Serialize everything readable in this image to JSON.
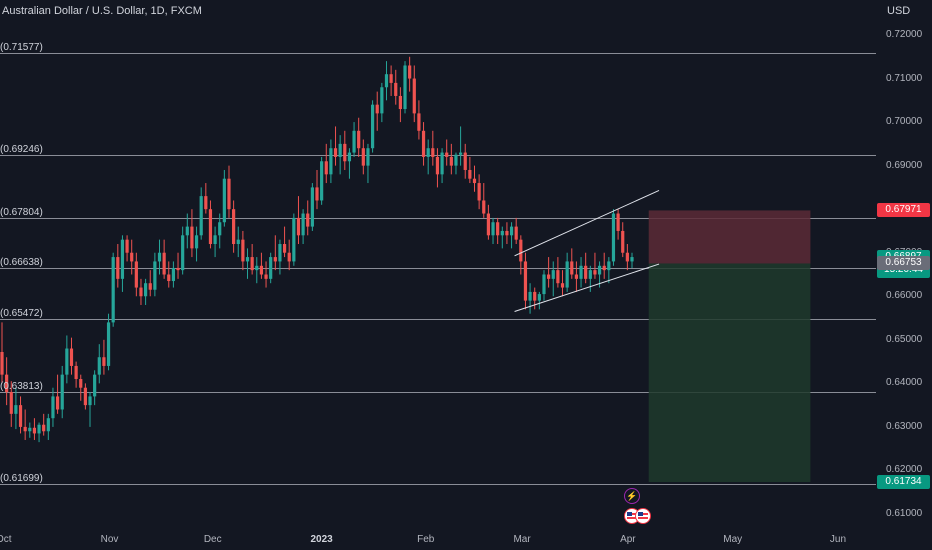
{
  "chart_data": {
    "type": "candlestick",
    "title": "Australian Dollar / U.S. Dollar, 1D, FXCM",
    "currency": "USD",
    "ylim": [
      0.6063,
      0.7236
    ],
    "y_ticks": [
      "0.72000",
      "0.71000",
      "0.70000",
      "0.69000",
      "0.68000",
      "0.67000",
      "0.66000",
      "0.65000",
      "0.64000",
      "0.63000",
      "0.62000",
      "0.61000"
    ],
    "x_ticks": [
      {
        "label": "Oct",
        "bold": false
      },
      {
        "label": "Nov",
        "bold": false
      },
      {
        "label": "Dec",
        "bold": false
      },
      {
        "label": "2023",
        "bold": true
      },
      {
        "label": "Feb",
        "bold": false
      },
      {
        "label": "Mar",
        "bold": false
      },
      {
        "label": "Apr",
        "bold": false
      },
      {
        "label": "May",
        "bold": false
      },
      {
        "label": "Jun",
        "bold": false
      }
    ],
    "levels": [
      {
        "label": "0.71577",
        "value": 0.71577
      },
      {
        "label": "0.69246",
        "value": 0.69246
      },
      {
        "label": "0.67804",
        "value": 0.67804
      },
      {
        "label": "0.66638",
        "value": 0.66638
      },
      {
        "label": "0.65472",
        "value": 0.65472
      },
      {
        "label": "0.63813",
        "value": 0.63813
      },
      {
        "label": "0.61699",
        "value": 0.61699
      }
    ],
    "channel": {
      "upper": [
        [
          "Feb 27",
          0.6693
        ],
        [
          "Apr 10",
          0.6843
        ]
      ],
      "lower": [
        [
          "Feb 27",
          0.6565
        ],
        [
          "Apr 10",
          0.6674
        ]
      ]
    },
    "position": {
      "type": "short",
      "entry": 0.66753,
      "stop": 0.67971,
      "target": 0.61734,
      "start": "Apr 7",
      "end": "May 24",
      "loss_color": "#5c2a36",
      "profit_color": "#1e3a2c"
    },
    "price_tags": [
      {
        "label": "0.67971",
        "value": 0.67971,
        "color": "#f23645"
      },
      {
        "label": "0.66897",
        "value": 0.66897,
        "color": "#089981",
        "sub": "15:20:44"
      },
      {
        "label": "0.66753",
        "value": 0.66753,
        "color": "#6a6d78"
      },
      {
        "label": "0.61734",
        "value": 0.61734,
        "color": "#089981"
      }
    ],
    "up_color": "#26a69a",
    "down_color": "#ef5350",
    "candles": [
      [
        0.6472,
        0.654,
        0.64,
        0.642
      ],
      [
        0.642,
        0.646,
        0.635,
        0.638
      ],
      [
        0.638,
        0.6405,
        0.63,
        0.633
      ],
      [
        0.633,
        0.639,
        0.6295,
        0.635
      ],
      [
        0.635,
        0.637,
        0.6285,
        0.63
      ],
      [
        0.63,
        0.634,
        0.627,
        0.629
      ],
      [
        0.629,
        0.631,
        0.6275,
        0.6298
      ],
      [
        0.6298,
        0.632,
        0.627,
        0.6285
      ],
      [
        0.6285,
        0.631,
        0.6265,
        0.6305
      ],
      [
        0.6305,
        0.633,
        0.628,
        0.629
      ],
      [
        0.629,
        0.633,
        0.627,
        0.632
      ],
      [
        0.632,
        0.639,
        0.63,
        0.637
      ],
      [
        0.637,
        0.642,
        0.633,
        0.634
      ],
      [
        0.634,
        0.644,
        0.632,
        0.642
      ],
      [
        0.642,
        0.651,
        0.64,
        0.648
      ],
      [
        0.648,
        0.6505,
        0.642,
        0.644
      ],
      [
        0.644,
        0.645,
        0.639,
        0.641
      ],
      [
        0.641,
        0.642,
        0.636,
        0.639
      ],
      [
        0.639,
        0.64,
        0.634,
        0.635
      ],
      [
        0.635,
        0.638,
        0.63,
        0.637
      ],
      [
        0.637,
        0.643,
        0.635,
        0.642
      ],
      [
        0.642,
        0.649,
        0.64,
        0.646
      ],
      [
        0.646,
        0.65,
        0.642,
        0.644
      ],
      [
        0.644,
        0.656,
        0.643,
        0.654
      ],
      [
        0.654,
        0.67,
        0.653,
        0.669
      ],
      [
        0.669,
        0.672,
        0.662,
        0.664
      ],
      [
        0.664,
        0.674,
        0.661,
        0.673
      ],
      [
        0.673,
        0.674,
        0.668,
        0.67
      ],
      [
        0.67,
        0.673,
        0.665,
        0.668
      ],
      [
        0.668,
        0.67,
        0.66,
        0.662
      ],
      [
        0.662,
        0.664,
        0.658,
        0.66
      ],
      [
        0.66,
        0.664,
        0.658,
        0.663
      ],
      [
        0.663,
        0.666,
        0.66,
        0.6615
      ],
      [
        0.6615,
        0.67,
        0.66,
        0.668
      ],
      [
        0.668,
        0.673,
        0.665,
        0.67
      ],
      [
        0.67,
        0.673,
        0.664,
        0.665
      ],
      [
        0.665,
        0.668,
        0.662,
        0.6635
      ],
      [
        0.6635,
        0.668,
        0.662,
        0.6665
      ],
      [
        0.6665,
        0.67,
        0.664,
        0.666
      ],
      [
        0.666,
        0.676,
        0.665,
        0.674
      ],
      [
        0.674,
        0.679,
        0.671,
        0.676
      ],
      [
        0.676,
        0.68,
        0.669,
        0.671
      ],
      [
        0.671,
        0.676,
        0.668,
        0.674
      ],
      [
        0.674,
        0.685,
        0.673,
        0.683
      ],
      [
        0.683,
        0.686,
        0.679,
        0.68
      ],
      [
        0.68,
        0.682,
        0.671,
        0.672
      ],
      [
        0.672,
        0.676,
        0.669,
        0.674
      ],
      [
        0.674,
        0.679,
        0.671,
        0.677
      ],
      [
        0.677,
        0.689,
        0.676,
        0.687
      ],
      [
        0.687,
        0.69,
        0.678,
        0.68
      ],
      [
        0.68,
        0.682,
        0.67,
        0.672
      ],
      [
        0.672,
        0.676,
        0.669,
        0.673
      ],
      [
        0.673,
        0.675,
        0.666,
        0.668
      ],
      [
        0.668,
        0.671,
        0.664,
        0.669
      ],
      [
        0.669,
        0.672,
        0.665,
        0.666
      ],
      [
        0.666,
        0.669,
        0.663,
        0.667
      ],
      [
        0.667,
        0.67,
        0.664,
        0.665
      ],
      [
        0.665,
        0.668,
        0.662,
        0.664
      ],
      [
        0.664,
        0.67,
        0.663,
        0.669
      ],
      [
        0.669,
        0.674,
        0.666,
        0.668
      ],
      [
        0.668,
        0.673,
        0.665,
        0.672
      ],
      [
        0.672,
        0.676,
        0.669,
        0.67
      ],
      [
        0.67,
        0.673,
        0.666,
        0.668
      ],
      [
        0.668,
        0.679,
        0.667,
        0.678
      ],
      [
        0.678,
        0.683,
        0.672,
        0.674
      ],
      [
        0.674,
        0.68,
        0.672,
        0.679
      ],
      [
        0.679,
        0.682,
        0.674,
        0.676
      ],
      [
        0.676,
        0.686,
        0.675,
        0.685
      ],
      [
        0.685,
        0.689,
        0.68,
        0.682
      ],
      [
        0.682,
        0.692,
        0.681,
        0.691
      ],
      [
        0.691,
        0.695,
        0.686,
        0.688
      ],
      [
        0.688,
        0.696,
        0.686,
        0.694
      ],
      [
        0.694,
        0.699,
        0.69,
        0.692
      ],
      [
        0.692,
        0.697,
        0.688,
        0.695
      ],
      [
        0.695,
        0.698,
        0.689,
        0.691
      ],
      [
        0.691,
        0.694,
        0.687,
        0.693
      ],
      [
        0.693,
        0.7,
        0.692,
        0.698
      ],
      [
        0.698,
        0.701,
        0.692,
        0.694
      ],
      [
        0.694,
        0.696,
        0.688,
        0.69
      ],
      [
        0.69,
        0.695,
        0.686,
        0.694
      ],
      [
        0.694,
        0.705,
        0.693,
        0.704
      ],
      [
        0.704,
        0.707,
        0.698,
        0.702
      ],
      [
        0.702,
        0.709,
        0.7,
        0.708
      ],
      [
        0.708,
        0.714,
        0.705,
        0.711
      ],
      [
        0.711,
        0.713,
        0.706,
        0.709
      ],
      [
        0.709,
        0.712,
        0.704,
        0.706
      ],
      [
        0.706,
        0.708,
        0.7,
        0.703
      ],
      [
        0.703,
        0.714,
        0.702,
        0.713
      ],
      [
        0.713,
        0.715,
        0.707,
        0.71
      ],
      [
        0.71,
        0.713,
        0.7,
        0.702
      ],
      [
        0.702,
        0.705,
        0.696,
        0.698
      ],
      [
        0.698,
        0.7,
        0.69,
        0.692
      ],
      [
        0.692,
        0.696,
        0.688,
        0.694
      ],
      [
        0.694,
        0.698,
        0.69,
        0.692
      ],
      [
        0.692,
        0.694,
        0.685,
        0.688
      ],
      [
        0.688,
        0.694,
        0.686,
        0.693
      ],
      [
        0.693,
        0.696,
        0.69,
        0.692
      ],
      [
        0.692,
        0.695,
        0.688,
        0.69
      ],
      [
        0.69,
        0.693,
        0.688,
        0.6925
      ],
      [
        0.6925,
        0.699,
        0.69,
        0.693
      ],
      [
        0.693,
        0.695,
        0.687,
        0.689
      ],
      [
        0.689,
        0.692,
        0.686,
        0.687
      ],
      [
        0.687,
        0.69,
        0.684,
        0.686
      ],
      [
        0.686,
        0.688,
        0.68,
        0.682
      ],
      [
        0.682,
        0.686,
        0.678,
        0.679
      ],
      [
        0.679,
        0.681,
        0.673,
        0.674
      ],
      [
        0.674,
        0.678,
        0.672,
        0.677
      ],
      [
        0.677,
        0.678,
        0.672,
        0.674
      ],
      [
        0.674,
        0.676,
        0.671,
        0.675
      ],
      [
        0.675,
        0.677,
        0.672,
        0.674
      ],
      [
        0.674,
        0.677,
        0.671,
        0.676
      ],
      [
        0.676,
        0.678,
        0.672,
        0.673
      ],
      [
        0.673,
        0.674,
        0.665,
        0.668
      ],
      [
        0.668,
        0.67,
        0.657,
        0.659
      ],
      [
        0.659,
        0.663,
        0.656,
        0.661
      ],
      [
        0.661,
        0.662,
        0.657,
        0.659
      ],
      [
        0.659,
        0.661,
        0.657,
        0.6605
      ],
      [
        0.6605,
        0.666,
        0.659,
        0.665
      ],
      [
        0.665,
        0.669,
        0.662,
        0.664
      ],
      [
        0.664,
        0.668,
        0.66,
        0.666
      ],
      [
        0.666,
        0.669,
        0.662,
        0.663
      ],
      [
        0.663,
        0.666,
        0.66,
        0.662
      ],
      [
        0.662,
        0.67,
        0.661,
        0.668
      ],
      [
        0.668,
        0.671,
        0.664,
        0.665
      ],
      [
        0.665,
        0.668,
        0.661,
        0.664
      ],
      [
        0.664,
        0.669,
        0.662,
        0.667
      ],
      [
        0.667,
        0.67,
        0.663,
        0.664
      ],
      [
        0.664,
        0.667,
        0.661,
        0.666
      ],
      [
        0.666,
        0.67,
        0.664,
        0.665
      ],
      [
        0.665,
        0.668,
        0.662,
        0.667
      ],
      [
        0.667,
        0.67,
        0.664,
        0.666
      ],
      [
        0.666,
        0.669,
        0.663,
        0.668
      ],
      [
        0.668,
        0.68,
        0.667,
        0.679
      ],
      [
        0.679,
        0.68,
        0.673,
        0.675
      ],
      [
        0.675,
        0.677,
        0.669,
        0.67
      ],
      [
        0.67,
        0.672,
        0.666,
        0.668
      ],
      [
        0.668,
        0.67,
        0.6665,
        0.669
      ]
    ]
  }
}
